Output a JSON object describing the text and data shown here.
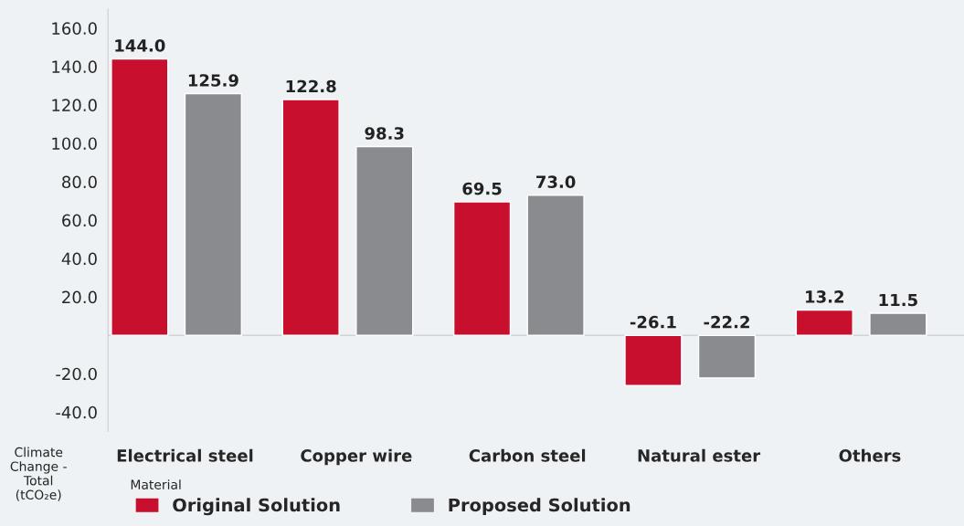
{
  "chart_data": {
    "type": "bar",
    "categories": [
      "Electrical steel",
      "Copper wire",
      "Carbon steel",
      "Natural ester",
      "Others"
    ],
    "series": [
      {
        "name": "Original Solution",
        "color": "#c8102e",
        "values": [
          144.0,
          122.8,
          69.5,
          -26.1,
          13.2
        ],
        "value_labels": [
          "144.0",
          "122.8",
          "69.5",
          "-26.1",
          "13.2"
        ]
      },
      {
        "name": "Proposed Solution",
        "color": "#898b8e",
        "values": [
          125.9,
          98.3,
          73.0,
          -22.2,
          11.5
        ],
        "value_labels": [
          "125.9",
          "98.3",
          "73.0",
          "-22.2",
          "11.5"
        ]
      }
    ],
    "xlabel": "Material",
    "ylabel": "Climate Change - Total (tCO₂e)",
    "ylim": [
      -50,
      170
    ],
    "yticks": [
      {
        "value": -40,
        "label": "-40.0"
      },
      {
        "value": -20,
        "label": "-20.0"
      },
      {
        "value": 0,
        "label": null
      },
      {
        "value": 20,
        "label": "20.0"
      },
      {
        "value": 40,
        "label": "40.0"
      },
      {
        "value": 60,
        "label": "60.0"
      },
      {
        "value": 80,
        "label": "80.0"
      },
      {
        "value": 100,
        "label": "100.0"
      },
      {
        "value": 120,
        "label": "120.0"
      },
      {
        "value": 140,
        "label": "140.0"
      },
      {
        "value": 160,
        "label": "160.0"
      }
    ],
    "ref_lines": [
      {
        "axis": "y",
        "value": 0,
        "color": "#d0d4d8"
      }
    ],
    "grid": false,
    "legend": "bottom left"
  }
}
